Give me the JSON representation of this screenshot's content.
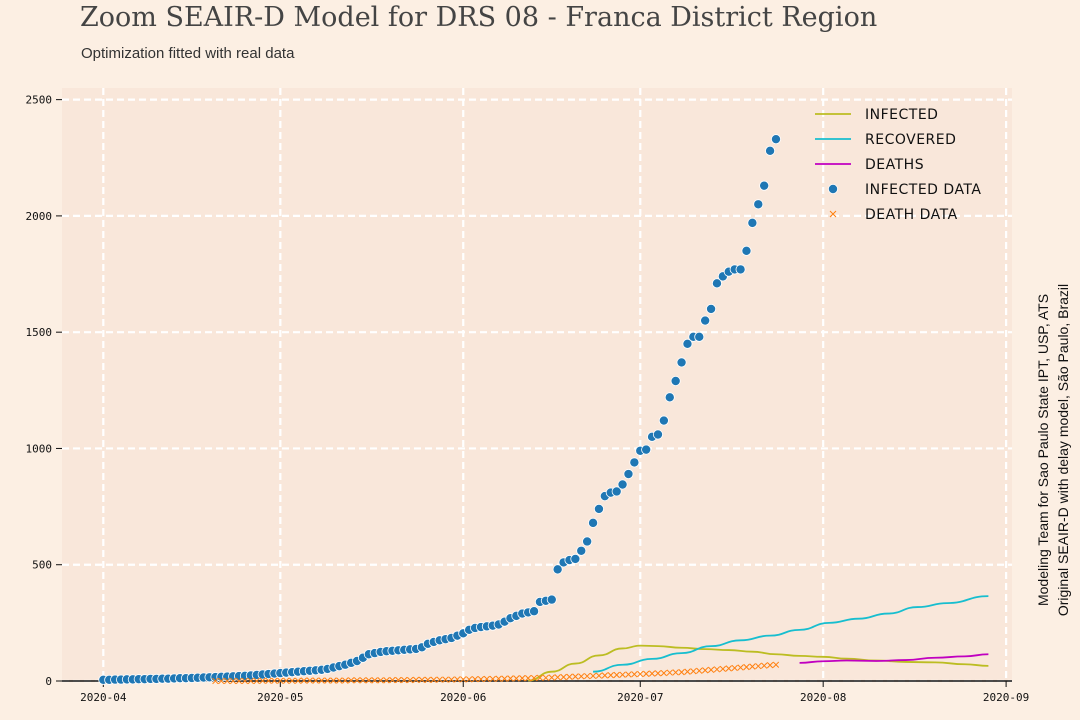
{
  "header": {
    "title": "Zoom SEAIR-D Model for DRS 08 - Franca District Region",
    "subtitle": "Optimization fitted with real data"
  },
  "side_note": {
    "line1": "Modeling Team for Sao Paulo State IPT, USP, ATS",
    "line2": "Original SEAIR-D with delay model, São Paulo, Brazil"
  },
  "colors": {
    "background": "#fcefe3",
    "plot_area": "#f9e7da",
    "grid": "#ffffff",
    "infected": "#bcbd22",
    "recovered": "#17becf",
    "deaths": "#c000c0",
    "infected_data": "#1f77b4",
    "death_data": "#ff7f0e"
  },
  "chart_data": {
    "type": "line",
    "title": "Zoom SEAIR-D Model for DRS 08 - Franca District Region",
    "subtitle": "Optimization fitted with real data",
    "xlabel": "",
    "ylabel": "",
    "xlim": [
      "2020-03-25",
      "2020-09-02"
    ],
    "ylim": [
      0,
      2550
    ],
    "grid": true,
    "legend_position": "top-right",
    "x_ticks": [
      "2020-04",
      "2020-05",
      "2020-06",
      "2020-07",
      "2020-08",
      "2020-09"
    ],
    "y_ticks": [
      0,
      500,
      1000,
      1500,
      2000,
      2500
    ],
    "series": [
      {
        "name": "Infected",
        "kind": "line",
        "color": "#bcbd22",
        "x": [
          "2020-06-12",
          "2020-06-16",
          "2020-06-20",
          "2020-06-24",
          "2020-06-28",
          "2020-07-01",
          "2020-07-04",
          "2020-07-08",
          "2020-07-12",
          "2020-07-16",
          "2020-07-20",
          "2020-07-24",
          "2020-07-28",
          "2020-08-01",
          "2020-08-05",
          "2020-08-10",
          "2020-08-15",
          "2020-08-20",
          "2020-08-25",
          "2020-08-29"
        ],
        "y": [
          2,
          40,
          75,
          110,
          140,
          152,
          150,
          143,
          137,
          133,
          126,
          115,
          108,
          104,
          96,
          88,
          82,
          80,
          72,
          65
        ]
      },
      {
        "name": "Recovered",
        "kind": "line",
        "color": "#17becf",
        "x": [
          "2020-06-23",
          "2020-06-28",
          "2020-07-03",
          "2020-07-08",
          "2020-07-13",
          "2020-07-18",
          "2020-07-23",
          "2020-07-28",
          "2020-08-02",
          "2020-08-07",
          "2020-08-12",
          "2020-08-17",
          "2020-08-22",
          "2020-08-29"
        ],
        "y": [
          40,
          70,
          95,
          120,
          150,
          175,
          195,
          220,
          250,
          268,
          290,
          318,
          335,
          365
        ]
      },
      {
        "name": "Deaths",
        "kind": "line",
        "color": "#c000c0",
        "x": [
          "2020-07-28",
          "2020-08-01",
          "2020-08-05",
          "2020-08-10",
          "2020-08-15",
          "2020-08-20",
          "2020-08-25",
          "2020-08-29"
        ],
        "y": [
          78,
          85,
          88,
          86,
          90,
          100,
          106,
          115
        ]
      },
      {
        "name": "Infected data",
        "kind": "scatter",
        "color": "#1f77b4",
        "x_start": "2020-04-01",
        "y": [
          5,
          5,
          6,
          6,
          7,
          7,
          8,
          8,
          9,
          9,
          10,
          10,
          11,
          12,
          12,
          13,
          14,
          15,
          16,
          17,
          18,
          19,
          20,
          21,
          22,
          24,
          26,
          28,
          30,
          32,
          34,
          36,
          38,
          40,
          42,
          44,
          46,
          48,
          52,
          58,
          64,
          70,
          78,
          86,
          100,
          115,
          120,
          125,
          128,
          130,
          132,
          134,
          136,
          138,
          145,
          160,
          168,
          175,
          180,
          185,
          195,
          205,
          220,
          228,
          232,
          235,
          238,
          243,
          255,
          270,
          280,
          290,
          295,
          300,
          340,
          345,
          350,
          480,
          510,
          520,
          525,
          560,
          600,
          680,
          740,
          795,
          810,
          815,
          845,
          890,
          940,
          990,
          995,
          1050,
          1060,
          1120,
          1220,
          1290,
          1370,
          1450,
          1480,
          1480,
          1550,
          1600,
          1710,
          1740,
          1760,
          1770,
          1770,
          1850,
          1970,
          2050,
          2130,
          2280,
          2330
        ]
      },
      {
        "name": "Death data",
        "kind": "scatter-x",
        "color": "#ff7f0e",
        "x_start": "2020-04-20",
        "y": [
          0,
          0,
          0,
          0,
          0,
          0,
          0,
          0,
          1,
          1,
          1,
          1,
          1,
          1,
          1,
          2,
          2,
          2,
          2,
          2,
          2,
          2,
          2,
          3,
          3,
          3,
          3,
          3,
          3,
          3,
          4,
          4,
          4,
          4,
          5,
          5,
          5,
          5,
          6,
          6,
          6,
          7,
          7,
          7,
          8,
          8,
          9,
          9,
          10,
          10,
          11,
          11,
          12,
          12,
          13,
          14,
          14,
          15,
          16,
          17,
          18,
          19,
          20,
          21,
          22,
          23,
          24,
          25,
          26,
          27,
          28,
          29,
          30,
          31,
          32,
          33,
          34,
          36,
          37,
          38,
          40,
          42,
          44,
          46,
          48,
          50,
          52,
          54,
          56,
          58,
          60,
          62,
          64,
          66,
          68,
          70
        ]
      }
    ]
  }
}
